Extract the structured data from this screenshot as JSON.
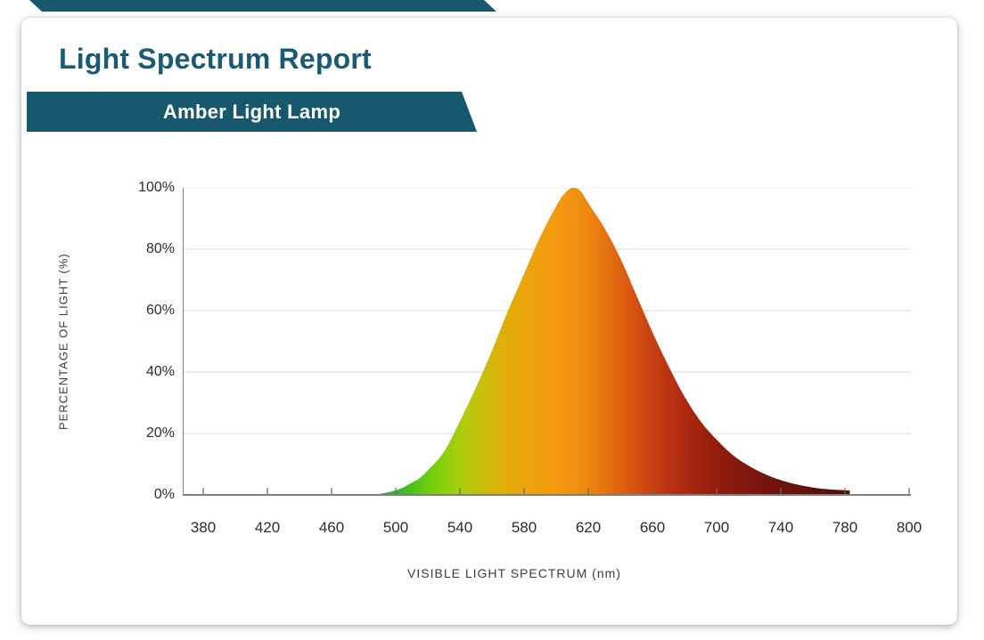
{
  "header": {
    "title": "Light Spectrum Report",
    "banner_label": "Amber Light Lamp",
    "accent_color": "#17586f",
    "title_color": "#1a5a74"
  },
  "chart_data": {
    "type": "area",
    "title": "Light Spectrum Report - Amber Light Lamp",
    "xlabel": "VISIBLE LIGHT SPECTRUM (nm)",
    "ylabel": "PERCENTAGE OF LIGHT (%)",
    "xlim": [
      380,
      800
    ],
    "ylim": [
      0,
      100
    ],
    "grid": true,
    "grid_color": "#ededed",
    "axis_color": "#7f7f7f",
    "tick_color": "#6b6b6b",
    "x_tick_labels": [
      "380",
      "420",
      "460",
      "500",
      "540",
      "580",
      "620",
      "660",
      "700",
      "740",
      "780",
      "800"
    ],
    "x_tick_values": [
      380,
      420,
      460,
      500,
      540,
      580,
      620,
      660,
      700,
      740,
      780,
      800
    ],
    "y_tick_labels": [
      "0%",
      "20%",
      "40%",
      "60%",
      "80%",
      "100%"
    ],
    "y_tick_values": [
      0,
      20,
      40,
      60,
      80,
      100
    ],
    "peak_nm": 610,
    "peak_percent": 100,
    "series": [
      {
        "name": "Amber Light Lamp spectrum",
        "points": [
          [
            488,
            0.2
          ],
          [
            495,
            0.8
          ],
          [
            500,
            1.5
          ],
          [
            505,
            2.5
          ],
          [
            510,
            4
          ],
          [
            515,
            5.5
          ],
          [
            520,
            8
          ],
          [
            530,
            14
          ],
          [
            540,
            24
          ],
          [
            550,
            35
          ],
          [
            560,
            47
          ],
          [
            570,
            60
          ],
          [
            580,
            72
          ],
          [
            590,
            84
          ],
          [
            600,
            94
          ],
          [
            605,
            98
          ],
          [
            610,
            100
          ],
          [
            615,
            99
          ],
          [
            620,
            95
          ],
          [
            630,
            87
          ],
          [
            640,
            77
          ],
          [
            650,
            65
          ],
          [
            660,
            53
          ],
          [
            670,
            42
          ],
          [
            680,
            32
          ],
          [
            690,
            24
          ],
          [
            700,
            18
          ],
          [
            710,
            13
          ],
          [
            720,
            9.5
          ],
          [
            730,
            6.8
          ],
          [
            740,
            4.8
          ],
          [
            750,
            3.4
          ],
          [
            760,
            2.4
          ],
          [
            770,
            1.8
          ],
          [
            780,
            1.5
          ],
          [
            783,
            1.4
          ]
        ]
      }
    ],
    "gradient_stops": [
      [
        488,
        "#28a152"
      ],
      [
        500,
        "#33b232"
      ],
      [
        510,
        "#4cc317"
      ],
      [
        520,
        "#6ccd0f"
      ],
      [
        532,
        "#92d00c"
      ],
      [
        544,
        "#b4cb0b"
      ],
      [
        556,
        "#cdbc09"
      ],
      [
        568,
        "#e0ad08"
      ],
      [
        582,
        "#eda30b"
      ],
      [
        598,
        "#f29c0e"
      ],
      [
        612,
        "#f0910f"
      ],
      [
        626,
        "#ea7c0f"
      ],
      [
        640,
        "#de6110"
      ],
      [
        654,
        "#cf4a11"
      ],
      [
        668,
        "#bd3511"
      ],
      [
        682,
        "#a92810"
      ],
      [
        698,
        "#961e0e"
      ],
      [
        714,
        "#84180d"
      ],
      [
        732,
        "#73140c"
      ],
      [
        755,
        "#64110a"
      ],
      [
        783,
        "#4f0e08"
      ]
    ]
  }
}
